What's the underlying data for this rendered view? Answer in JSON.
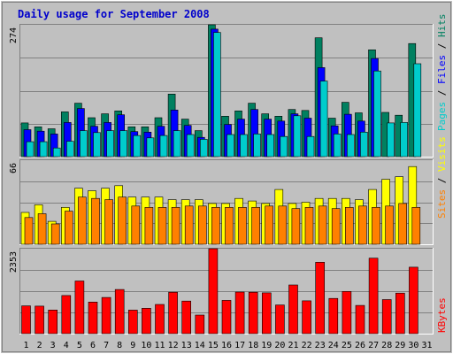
{
  "chart_data": [
    {
      "type": "bar",
      "title": "Daily usage for September 2008",
      "categories": [
        "1",
        "2",
        "3",
        "4",
        "5",
        "6",
        "7",
        "8",
        "9",
        "10",
        "11",
        "12",
        "13",
        "14",
        "15",
        "16",
        "17",
        "18",
        "19",
        "20",
        "21",
        "22",
        "23",
        "24",
        "25",
        "26",
        "27",
        "28",
        "29",
        "30",
        "31"
      ],
      "weekend_days": [
        6,
        7,
        13,
        14,
        20,
        21,
        27,
        28
      ],
      "ymax_label": "274",
      "ylim": [
        0,
        274
      ],
      "ylabel_parts": [
        {
          "text": "Pages",
          "color": "#00cccc"
        },
        {
          "text": " / ",
          "color": "#000000"
        },
        {
          "text": "Files",
          "color": "#0000ff"
        },
        {
          "text": " / ",
          "color": "#000000"
        },
        {
          "text": "Hits",
          "color": "#008060"
        }
      ],
      "series": [
        {
          "name": "Hits",
          "color": "#008060",
          "values": [
            70,
            62,
            58,
            93,
            111,
            81,
            89,
            95,
            62,
            62,
            81,
            130,
            78,
            54,
            274,
            84,
            95,
            111,
            89,
            84,
            98,
            96,
            247,
            80,
            113,
            91,
            222,
            92,
            86,
            235,
            0
          ]
        },
        {
          "name": "Files",
          "color": "#0000ff",
          "values": [
            56,
            53,
            47,
            71,
            100,
            63,
            71,
            87,
            52,
            51,
            63,
            97,
            65,
            40,
            265,
            67,
            78,
            98,
            78,
            74,
            89,
            80,
            185,
            64,
            88,
            74,
            204,
            0,
            0,
            0,
            0
          ]
        },
        {
          "name": "Pages",
          "color": "#00cccc",
          "values": [
            31,
            31,
            18,
            32,
            54,
            50,
            54,
            54,
            44,
            39,
            44,
            54,
            46,
            36,
            258,
            46,
            46,
            47,
            46,
            42,
            85,
            42,
            157,
            47,
            46,
            51,
            178,
            70,
            71,
            193,
            0
          ]
        }
      ]
    },
    {
      "type": "bar",
      "categories": [
        "1",
        "2",
        "3",
        "4",
        "5",
        "6",
        "7",
        "8",
        "9",
        "10",
        "11",
        "12",
        "13",
        "14",
        "15",
        "16",
        "17",
        "18",
        "19",
        "20",
        "21",
        "22",
        "23",
        "24",
        "25",
        "26",
        "27",
        "28",
        "29",
        "30",
        "31"
      ],
      "ymax_label": "66",
      "ylim": [
        0,
        66
      ],
      "ylabel_parts": [
        {
          "text": "Sites",
          "color": "#ff8000"
        },
        {
          "text": " / ",
          "color": "#000000"
        },
        {
          "text": "Visits",
          "color": "#ffff00"
        }
      ],
      "series": [
        {
          "name": "Visits",
          "color": "#ffff00",
          "values": [
            25,
            31,
            18,
            29,
            44,
            42,
            44,
            46,
            37,
            37,
            37,
            35,
            35,
            35,
            32,
            32,
            36,
            34,
            32,
            43,
            32,
            33,
            36,
            36,
            36,
            35,
            43,
            51,
            53,
            61,
            0
          ]
        },
        {
          "name": "Sites",
          "color": "#ff8000",
          "values": [
            21,
            24,
            16,
            26,
            37,
            36,
            35,
            37,
            30,
            29,
            29,
            29,
            30,
            30,
            29,
            29,
            29,
            29,
            30,
            30,
            28,
            29,
            30,
            28,
            29,
            30,
            29,
            30,
            32,
            29,
            0
          ]
        }
      ]
    },
    {
      "type": "bar",
      "categories": [
        "1",
        "2",
        "3",
        "4",
        "5",
        "6",
        "7",
        "8",
        "9",
        "10",
        "11",
        "12",
        "13",
        "14",
        "15",
        "16",
        "17",
        "18",
        "19",
        "20",
        "21",
        "22",
        "23",
        "24",
        "25",
        "26",
        "27",
        "28",
        "29",
        "30",
        "31"
      ],
      "ymax_label": "2353",
      "ylim": [
        0,
        2353
      ],
      "ylabel_parts": [
        {
          "text": "KBytes",
          "color": "#ff0000"
        }
      ],
      "series": [
        {
          "name": "KBytes",
          "color": "#ff0000",
          "values": [
            770,
            762,
            655,
            1056,
            1459,
            876,
            1003,
            1222,
            652,
            704,
            808,
            1146,
            902,
            515,
            2353,
            921,
            1153,
            1147,
            1130,
            793,
            1348,
            910,
            1978,
            976,
            1168,
            783,
            2091,
            944,
            1122,
            1841,
            0
          ]
        }
      ]
    }
  ],
  "colors": {
    "panel_bg": "#c0c0c0",
    "plot_bg": "#c0c0c0",
    "grid": "#808080",
    "title": "#0000cc",
    "day_normal": "#000000",
    "day_weekend": "#008060"
  }
}
